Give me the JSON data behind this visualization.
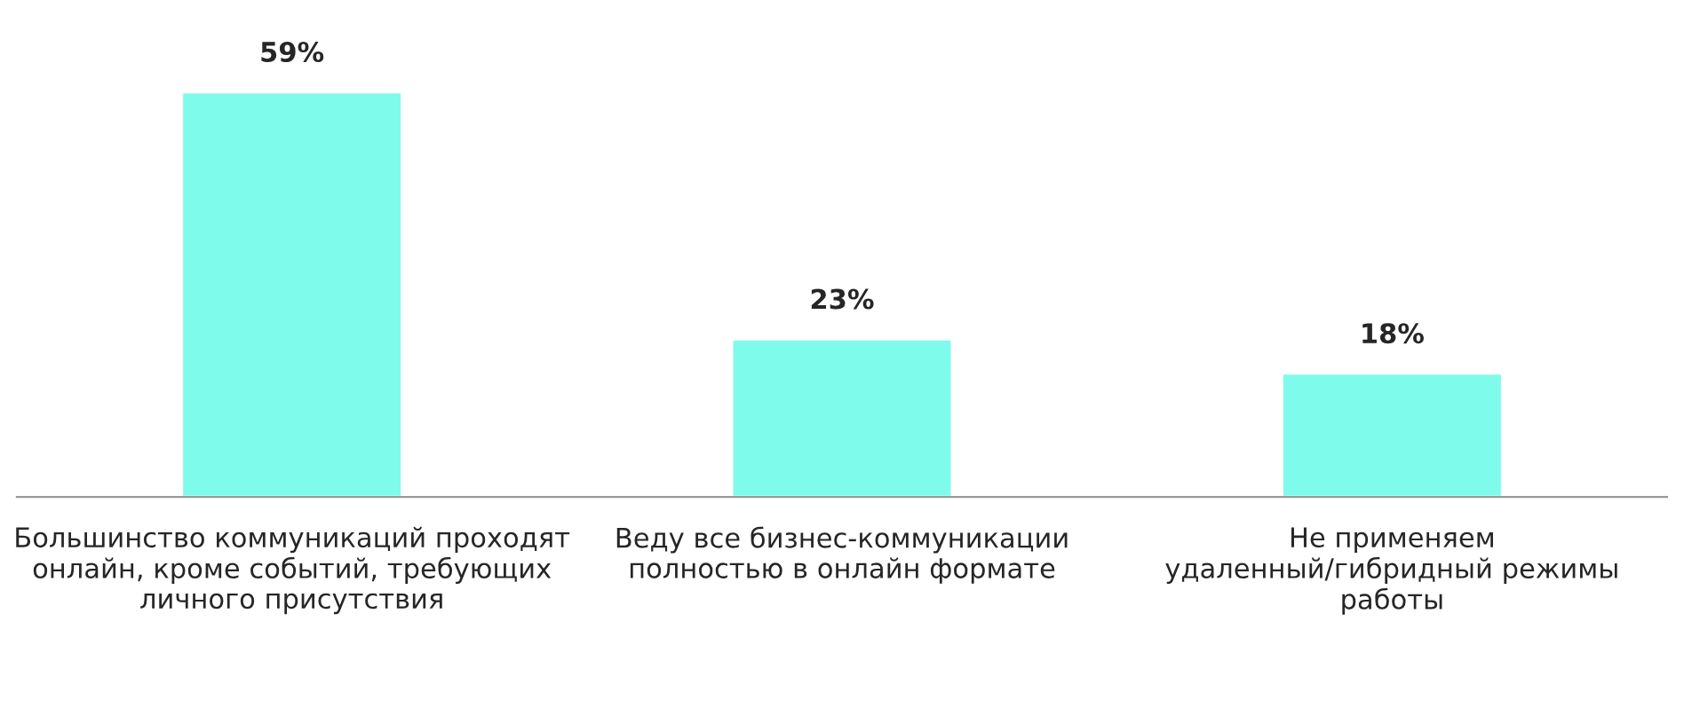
{
  "chart_data": {
    "type": "bar",
    "categories": [
      "Большинство коммуникаций проходят\nонлайн, кроме событий, требующих\nличного присутствия",
      "Веду все бизнес-коммуникации\nполностью в онлайн формате",
      "Не применяем\nудаленный/гибридный режимы\nработы"
    ],
    "values": [
      59,
      23,
      18
    ],
    "color": "#7ffbeb",
    "value_labels": [
      "59%",
      "23%",
      "18%"
    ],
    "grid": false,
    "legend": false
  }
}
